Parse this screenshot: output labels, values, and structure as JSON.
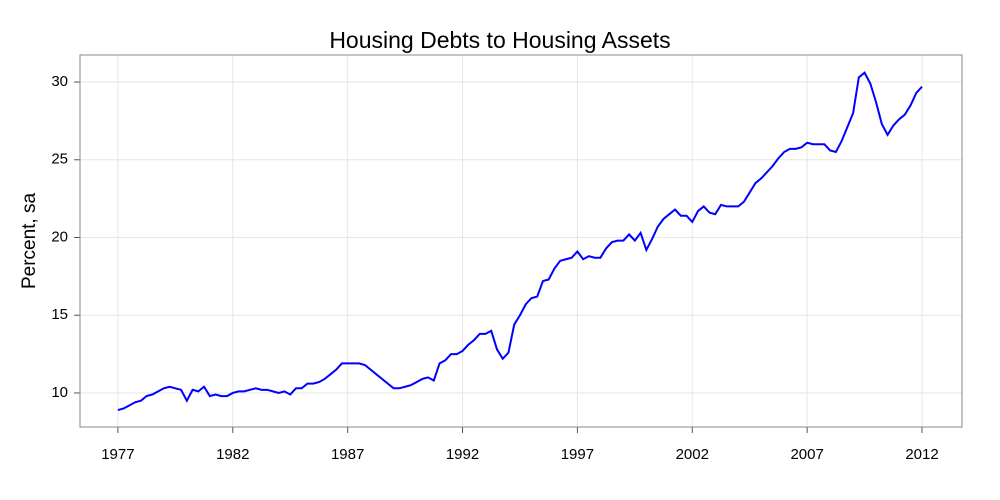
{
  "chart_data": {
    "type": "line",
    "title": "Housing Debts to Housing Assets",
    "ylabel": "Percent, sa",
    "x": [
      1977,
      1977.25,
      1977.5,
      1977.75,
      1978,
      1978.25,
      1978.5,
      1978.75,
      1979,
      1979.25,
      1979.5,
      1979.75,
      1980,
      1980.25,
      1980.5,
      1980.75,
      1981,
      1981.25,
      1981.5,
      1981.75,
      1982,
      1982.25,
      1982.5,
      1982.75,
      1983,
      1983.25,
      1983.5,
      1983.75,
      1984,
      1984.25,
      1984.5,
      1984.75,
      1985,
      1985.25,
      1985.5,
      1985.75,
      1986,
      1986.25,
      1986.5,
      1986.75,
      1987,
      1987.25,
      1987.5,
      1987.75,
      1988,
      1988.25,
      1988.5,
      1988.75,
      1989,
      1989.25,
      1989.5,
      1989.75,
      1990,
      1990.25,
      1990.5,
      1990.75,
      1991,
      1991.25,
      1991.5,
      1991.75,
      1992,
      1992.25,
      1992.5,
      1992.75,
      1993,
      1993.25,
      1993.5,
      1993.75,
      1994,
      1994.25,
      1994.5,
      1994.75,
      1995,
      1995.25,
      1995.5,
      1995.75,
      1996,
      1996.25,
      1996.5,
      1996.75,
      1997,
      1997.25,
      1997.5,
      1997.75,
      1998,
      1998.25,
      1998.5,
      1998.75,
      1999,
      1999.25,
      1999.5,
      1999.75,
      2000,
      2000.25,
      2000.5,
      2000.75,
      2001,
      2001.25,
      2001.5,
      2001.75,
      2002,
      2002.25,
      2002.5,
      2002.75,
      2003,
      2003.25,
      2003.5,
      2003.75,
      2004,
      2004.25,
      2004.5,
      2004.75,
      2005,
      2005.25,
      2005.5,
      2005.75,
      2006,
      2006.25,
      2006.5,
      2006.75,
      2007,
      2007.25,
      2007.5,
      2007.75,
      2008,
      2008.25,
      2008.5,
      2008.75,
      2009,
      2009.25,
      2009.5,
      2009.75,
      2010,
      2010.25,
      2010.5,
      2010.75,
      2011,
      2011.25,
      2011.5,
      2011.75,
      2012
    ],
    "series": [
      {
        "name": "Housing Debts to Housing Assets",
        "color": "#0000ff",
        "values": [
          8.9,
          9.0,
          9.2,
          9.4,
          9.5,
          9.8,
          9.9,
          10.1,
          10.3,
          10.4,
          10.3,
          10.2,
          9.5,
          10.2,
          10.1,
          10.4,
          9.8,
          9.9,
          9.8,
          9.8,
          10.0,
          10.1,
          10.1,
          10.2,
          10.3,
          10.2,
          10.2,
          10.1,
          10.0,
          10.1,
          9.9,
          10.3,
          10.3,
          10.6,
          10.6,
          10.7,
          10.9,
          11.2,
          11.5,
          11.9,
          11.9,
          11.9,
          11.9,
          11.8,
          11.5,
          11.2,
          10.9,
          10.6,
          10.3,
          10.3,
          10.4,
          10.5,
          10.7,
          10.9,
          11.0,
          10.8,
          11.9,
          12.1,
          12.5,
          12.5,
          12.7,
          13.1,
          13.4,
          13.8,
          13.8,
          14.0,
          12.8,
          12.2,
          12.6,
          14.4,
          15.0,
          15.7,
          16.1,
          16.2,
          17.2,
          17.3,
          18.0,
          18.5,
          18.6,
          18.7,
          19.1,
          18.6,
          18.8,
          18.7,
          18.7,
          19.3,
          19.7,
          19.8,
          19.8,
          20.2,
          19.8,
          20.3,
          19.2,
          19.9,
          20.7,
          21.2,
          21.5,
          21.8,
          21.4,
          21.4,
          21.0,
          21.7,
          22.0,
          21.6,
          21.5,
          22.1,
          22.0,
          22.0,
          22.0,
          22.3,
          22.9,
          23.5,
          23.8,
          24.2,
          24.6,
          25.1,
          25.5,
          25.7,
          25.7,
          25.8,
          26.1,
          26.0,
          26.0,
          26.0,
          25.6,
          25.5,
          26.2,
          27.1,
          28.0,
          30.3,
          30.6,
          29.9,
          28.7,
          27.3,
          26.6,
          27.2,
          27.6,
          27.9,
          28.5,
          29.3,
          29.7
        ]
      }
    ],
    "xlim": [
      1975.35,
      2013.74
    ],
    "xticks": [
      1977,
      1982,
      1987,
      1992,
      1997,
      2002,
      2007,
      2012
    ],
    "ylim": [
      7.81,
      31.74
    ],
    "yticks": [
      10,
      15,
      20,
      25,
      30
    ],
    "grid": true
  }
}
